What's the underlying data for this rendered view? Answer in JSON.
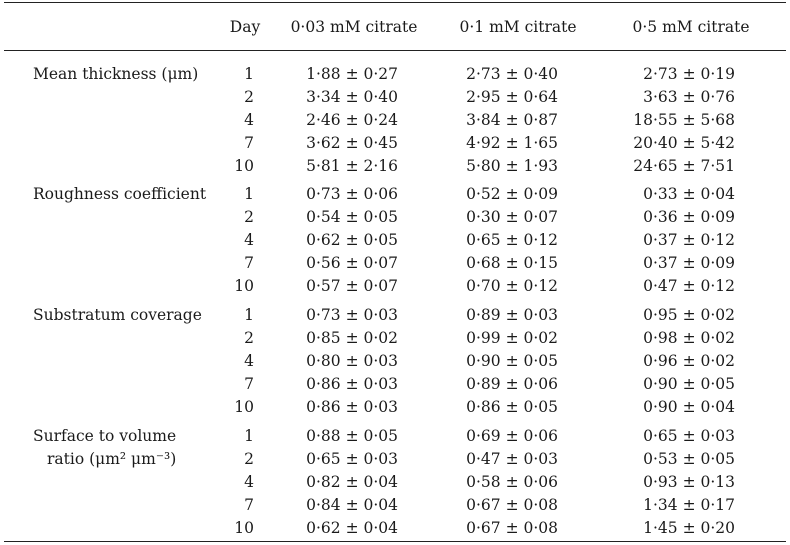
{
  "header": {
    "day": "Day",
    "col1": "0·03 mM citrate",
    "col2": "0·1 mM citrate",
    "col3": "0·5 mM citrate"
  },
  "groups": [
    {
      "label": [
        "Mean thickness (μm)"
      ],
      "rows": [
        {
          "day": "1",
          "v1": "1·88 ± 0·27",
          "v2": "2·73 ± 0·40",
          "v3": "2·73 ± 0·19"
        },
        {
          "day": "2",
          "v1": "3·34 ± 0·40",
          "v2": "2·95 ± 0·64",
          "v3": "3·63 ± 0·76"
        },
        {
          "day": "4",
          "v1": "2·46 ± 0·24",
          "v2": "3·84 ± 0·87",
          "v3": "18·55 ± 5·68"
        },
        {
          "day": "7",
          "v1": "3·62 ± 0·45",
          "v2": "4·92 ± 1·65",
          "v3": "20·40 ± 5·42"
        },
        {
          "day": "10",
          "v1": "5·81 ± 2·16",
          "v2": "5·80 ± 1·93",
          "v3": "24·65 ± 7·51"
        }
      ]
    },
    {
      "label": [
        "Roughness coefficient"
      ],
      "rows": [
        {
          "day": "1",
          "v1": "0·73 ± 0·06",
          "v2": "0·52 ± 0·09",
          "v3": "0·33 ± 0·04"
        },
        {
          "day": "2",
          "v1": "0·54 ± 0·05",
          "v2": "0·30 ± 0·07",
          "v3": "0·36 ± 0·09"
        },
        {
          "day": "4",
          "v1": "0·62 ± 0·05",
          "v2": "0·65 ± 0·12",
          "v3": "0·37 ± 0·12"
        },
        {
          "day": "7",
          "v1": "0·56 ± 0·07",
          "v2": "0·68 ± 0·15",
          "v3": "0·37 ± 0·09"
        },
        {
          "day": "10",
          "v1": "0·57 ± 0·07",
          "v2": "0·70 ± 0·12",
          "v3": "0·47 ± 0·12"
        }
      ]
    },
    {
      "label": [
        "Substratum coverage"
      ],
      "rows": [
        {
          "day": "1",
          "v1": "0·73 ± 0·03",
          "v2": "0·89 ± 0·03",
          "v3": "0·95 ± 0·02"
        },
        {
          "day": "2",
          "v1": "0·85 ± 0·02",
          "v2": "0·99 ± 0·02",
          "v3": "0·98  ± 0·02"
        },
        {
          "day": "4",
          "v1": "0·80 ± 0·03",
          "v2": "0·90 ± 0·05",
          "v3": "0·96 ± 0·02"
        },
        {
          "day": "7",
          "v1": "0·86 ± 0·03",
          "v2": "0·89 ± 0·06",
          "v3": "0·90 ± 0·05"
        },
        {
          "day": "10",
          "v1": "0·86 ± 0·03",
          "v2": "0·86 ± 0·05",
          "v3": "0·90 ± 0·04"
        }
      ]
    },
    {
      "label": [
        "Surface to volume",
        "ratio (μm² μm⁻³)"
      ],
      "rows": [
        {
          "day": "1",
          "v1": "0·88 ± 0·05",
          "v2": "0·69 ± 0·06",
          "v3": "0·65 ± 0·03"
        },
        {
          "day": "2",
          "v1": "0·65 ± 0·03",
          "v2": "0·47 ± 0·03",
          "v3": "0·53 ± 0·05"
        },
        {
          "day": "4",
          "v1": "0·82 ± 0·04",
          "v2": "0·58 ± 0·06",
          "v3": "0·93 ± 0·13"
        },
        {
          "day": "7",
          "v1": "0·84 ± 0·04",
          "v2": "0·67 ± 0·08",
          "v3": "1·34 ± 0·17"
        },
        {
          "day": "10",
          "v1": "0·62 ±  0·04",
          "v2": "0·67 ± 0·08",
          "v3": "1·45 ± 0·20"
        }
      ]
    }
  ]
}
